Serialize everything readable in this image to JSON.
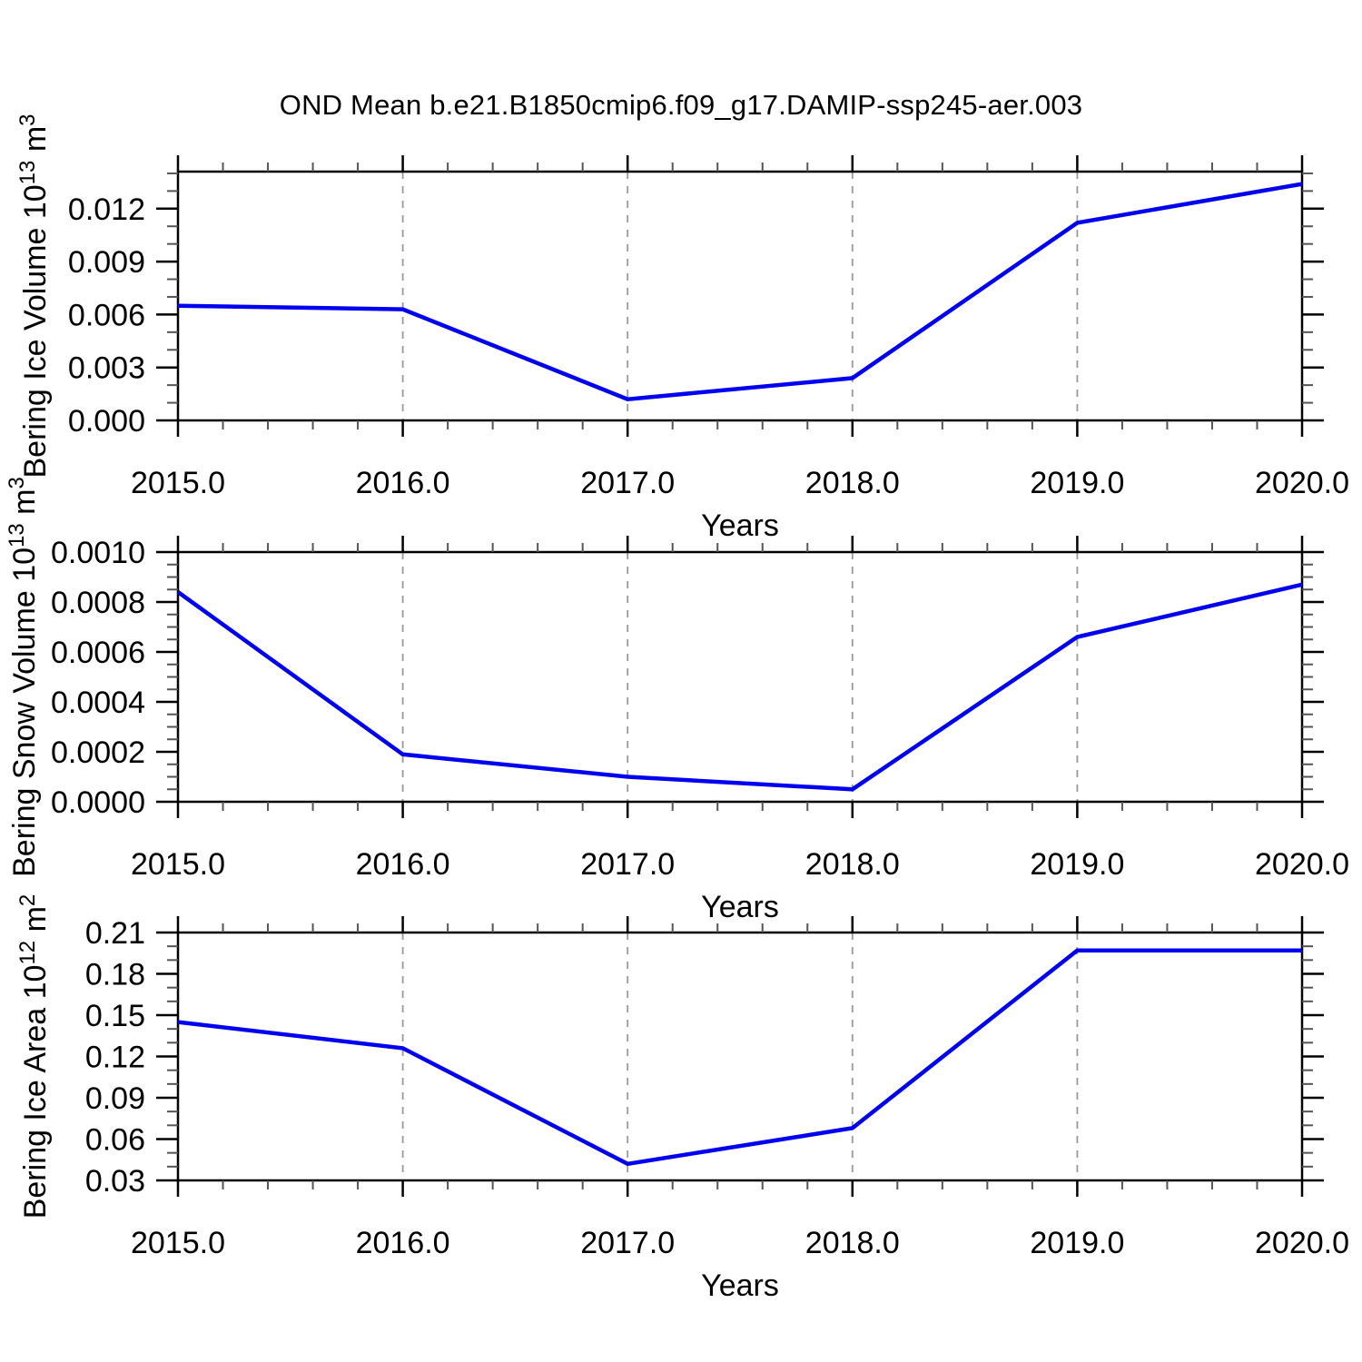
{
  "title": "OND Mean b.e21.B1850cmip6.f09_g17.DAMIP-ssp245-aer.003",
  "figure": {
    "background": "#ffffff",
    "line_color": "#0101f2",
    "axis_color": "#000000",
    "minor_tick_color": "#555555",
    "grid_color": "#999999",
    "text_color": "#000000"
  },
  "chart_data": [
    {
      "id": "ice-volume",
      "type": "line",
      "xlabel": "Years",
      "ylabel": "Bering Ice Volume 10^13 m^3",
      "ylabel_parts": [
        [
          "text",
          "Bering Ice Volume 10"
        ],
        [
          "sup",
          "13"
        ],
        [
          "text",
          " m"
        ],
        [
          "sup",
          "3"
        ]
      ],
      "x": [
        2015,
        2016,
        2017,
        2018,
        2019,
        2020
      ],
      "values": [
        0.0065,
        0.0063,
        0.0012,
        0.0024,
        0.0112,
        0.0134
      ],
      "xlim": [
        2015,
        2020
      ],
      "ylim": [
        0,
        0.0141
      ],
      "xticks": [
        2015,
        2016,
        2017,
        2018,
        2019,
        2020
      ],
      "xtick_labels": [
        "2015.0",
        "2016.0",
        "2017.0",
        "2018.0",
        "2019.0",
        "2020.0"
      ],
      "xminor_step": 0.2,
      "yticks": [
        0,
        0.003,
        0.006,
        0.009,
        0.012
      ],
      "ytick_labels": [
        "0.000",
        "0.003",
        "0.006",
        "0.009",
        "0.012"
      ],
      "yminor_step": 0.001,
      "grid_x": [
        2016,
        2017,
        2018,
        2019
      ],
      "grid_style": "dashed",
      "legend": "none"
    },
    {
      "id": "snow-volume",
      "type": "line",
      "xlabel": "Years",
      "ylabel": "Bering Snow Volume 10^13 m^3",
      "ylabel_parts": [
        [
          "text",
          "Bering Snow Volume 10"
        ],
        [
          "sup",
          "13"
        ],
        [
          "text",
          " m"
        ],
        [
          "sup",
          "3"
        ]
      ],
      "x": [
        2015,
        2016,
        2017,
        2018,
        2019,
        2020
      ],
      "values": [
        0.00084,
        0.00019,
        0.0001,
        5e-05,
        0.00066,
        0.00087
      ],
      "xlim": [
        2015,
        2020
      ],
      "ylim": [
        0,
        0.001
      ],
      "xticks": [
        2015,
        2016,
        2017,
        2018,
        2019,
        2020
      ],
      "xtick_labels": [
        "2015.0",
        "2016.0",
        "2017.0",
        "2018.0",
        "2019.0",
        "2020.0"
      ],
      "xminor_step": 0.2,
      "yticks": [
        0,
        0.0002,
        0.0004,
        0.0006,
        0.0008,
        0.001
      ],
      "ytick_labels": [
        "0.0000",
        "0.0002",
        "0.0004",
        "0.0006",
        "0.0008",
        "0.0010"
      ],
      "yminor_step": 5e-05,
      "grid_x": [
        2016,
        2017,
        2018,
        2019
      ],
      "grid_style": "dashed",
      "legend": "none"
    },
    {
      "id": "ice-area",
      "type": "line",
      "xlabel": "Years",
      "ylabel": "Bering Ice Area 10^12 m^2",
      "ylabel_parts": [
        [
          "text",
          "Bering Ice Area 10"
        ],
        [
          "sup",
          "12"
        ],
        [
          "text",
          " m"
        ],
        [
          "sup",
          "2"
        ]
      ],
      "x": [
        2015,
        2016,
        2017,
        2018,
        2019,
        2020
      ],
      "values": [
        0.145,
        0.126,
        0.042,
        0.068,
        0.197,
        0.197
      ],
      "xlim": [
        2015,
        2020
      ],
      "ylim": [
        0.03,
        0.21
      ],
      "xticks": [
        2015,
        2016,
        2017,
        2018,
        2019,
        2020
      ],
      "xtick_labels": [
        "2015.0",
        "2016.0",
        "2017.0",
        "2018.0",
        "2019.0",
        "2020.0"
      ],
      "xminor_step": 0.2,
      "yticks": [
        0.03,
        0.06,
        0.09,
        0.12,
        0.15,
        0.18,
        0.21
      ],
      "ytick_labels": [
        "0.03",
        "0.06",
        "0.09",
        "0.12",
        "0.15",
        "0.18",
        "0.21"
      ],
      "yminor_step": 0.01,
      "grid_x": [
        2016,
        2017,
        2018,
        2019
      ],
      "grid_style": "dashed",
      "legend": "none"
    }
  ]
}
